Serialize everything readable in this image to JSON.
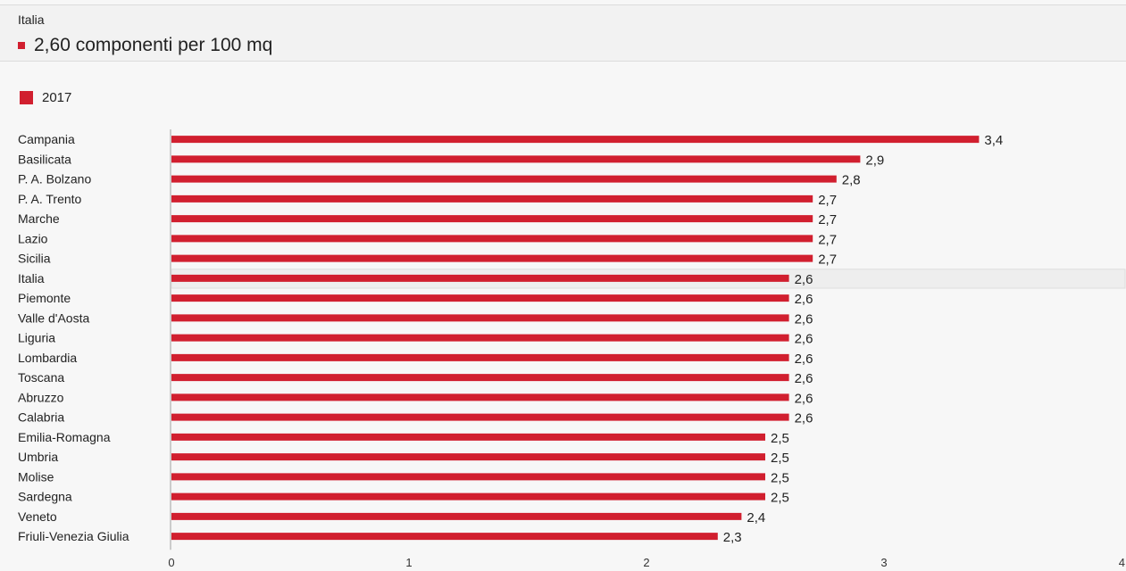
{
  "header": {
    "region": "Italia",
    "value_text": "2,60 componenti per 100 mq"
  },
  "legend": {
    "label": "2017"
  },
  "colors": {
    "bar": "#d11f2f",
    "axis": "#cccccc",
    "highlight_row": "#eeeeee"
  },
  "chart_data": {
    "type": "bar",
    "orientation": "horizontal",
    "categories": [
      "Campania",
      "Basilicata",
      "P. A. Bolzano",
      "P. A. Trento",
      "Marche",
      "Lazio",
      "Sicilia",
      "Italia",
      "Piemonte",
      "Valle d'Aosta",
      "Liguria",
      "Lombardia",
      "Toscana",
      "Abruzzo",
      "Calabria",
      "Emilia-Romagna",
      "Umbria",
      "Molise",
      "Sardegna",
      "Veneto",
      "Friuli-Venezia Giulia"
    ],
    "series": [
      {
        "name": "2017",
        "values": [
          3.4,
          2.9,
          2.8,
          2.7,
          2.7,
          2.7,
          2.7,
          2.6,
          2.6,
          2.6,
          2.6,
          2.6,
          2.6,
          2.6,
          2.6,
          2.5,
          2.5,
          2.5,
          2.5,
          2.4,
          2.3
        ],
        "labels": [
          "3,4",
          "2,9",
          "2,8",
          "2,7",
          "2,7",
          "2,7",
          "2,7",
          "2,6",
          "2,6",
          "2,6",
          "2,6",
          "2,6",
          "2,6",
          "2,6",
          "2,6",
          "2,5",
          "2,5",
          "2,5",
          "2,5",
          "2,4",
          "2,3"
        ]
      }
    ],
    "highlight_category": "Italia",
    "xlim": [
      0,
      4
    ],
    "xticks": [
      0,
      1,
      2,
      3,
      4
    ],
    "xtick_labels": [
      "0",
      "1",
      "2",
      "3",
      "4"
    ],
    "grid": false,
    "legend_position": "top-left"
  }
}
